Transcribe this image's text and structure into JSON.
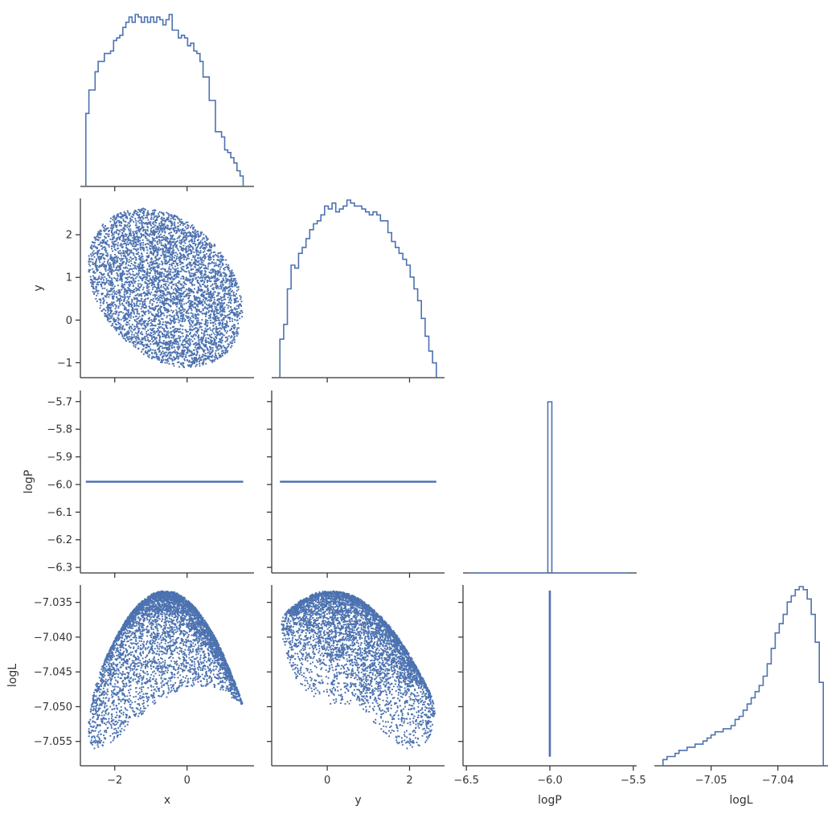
{
  "chart_data": {
    "type": "corner",
    "variables": [
      "x",
      "y",
      "logP",
      "logL"
    ],
    "color": "#4c72b0",
    "axis_color": "#333333",
    "ranges": {
      "x": [
        -2.95,
        1.85
      ],
      "y": [
        -1.35,
        2.85
      ],
      "logP": [
        -6.52,
        -5.48
      ],
      "logL": [
        -7.0585,
        -7.0325
      ]
    },
    "ticks": {
      "x": [
        {
          "v": -2,
          "t": "−2"
        },
        {
          "v": 0,
          "t": "0"
        }
      ],
      "y": [
        {
          "v": -1,
          "t": "−1"
        },
        {
          "v": 0,
          "t": "0"
        },
        {
          "v": 1,
          "t": "1"
        },
        {
          "v": 2,
          "t": "2"
        }
      ],
      "y_bottom": [
        {
          "v": 0,
          "t": "0"
        },
        {
          "v": 2,
          "t": "2"
        }
      ],
      "logP_left": [
        {
          "v": -5.7,
          "t": "−5.7"
        },
        {
          "v": -5.8,
          "t": "−5.8"
        },
        {
          "v": -5.9,
          "t": "−5.9"
        },
        {
          "v": -6.0,
          "t": "−6.0"
        },
        {
          "v": -6.1,
          "t": "−6.1"
        },
        {
          "v": -6.2,
          "t": "−6.2"
        },
        {
          "v": -6.3,
          "t": "−6.3"
        }
      ],
      "logP_bottom": [
        {
          "v": -6.5,
          "t": "−6.5"
        },
        {
          "v": -6.0,
          "t": "−6.0"
        },
        {
          "v": -5.5,
          "t": "−5.5"
        }
      ],
      "logL_left": [
        {
          "v": -7.035,
          "t": "−7.035"
        },
        {
          "v": -7.04,
          "t": "−7.040"
        },
        {
          "v": -7.045,
          "t": "−7.045"
        },
        {
          "v": -7.05,
          "t": "−7.050"
        },
        {
          "v": -7.055,
          "t": "−7.055"
        }
      ],
      "logL_bottom": [
        {
          "v": -7.05,
          "t": "−7.05"
        },
        {
          "v": -7.04,
          "t": "−7.04"
        }
      ]
    },
    "axis_labels": {
      "x": "x",
      "y": "y",
      "logP": "logP",
      "logL": "logL"
    },
    "histograms": {
      "x": {
        "range": [
          -2.8,
          1.55
        ],
        "counts": [
          28,
          37,
          37,
          44,
          48,
          48,
          51,
          51,
          52,
          56,
          57,
          58,
          61,
          63,
          65,
          63,
          66,
          65,
          63,
          65,
          63,
          65,
          63,
          65,
          64,
          62,
          64,
          66,
          60,
          60,
          57,
          58,
          57,
          54,
          55,
          52,
          51,
          48,
          42,
          42,
          33,
          33,
          21,
          21,
          19,
          14,
          13,
          11,
          9,
          6,
          4
        ]
      },
      "y": {
        "range": [
          -1.15,
          2.65
        ],
        "counts": [
          13,
          18,
          30,
          38,
          37,
          42,
          44,
          47,
          50,
          52,
          53,
          55,
          58,
          57,
          59,
          56,
          57,
          58,
          60,
          59,
          58,
          58,
          57,
          56,
          55,
          56,
          55,
          53,
          53,
          49,
          46,
          44,
          42,
          40,
          38,
          34,
          30,
          26,
          20,
          14,
          9,
          5
        ]
      },
      "logL": {
        "range": [
          -7.0572,
          -7.0332
        ],
        "counts": [
          2,
          3,
          3,
          4,
          5,
          5,
          6,
          6,
          7,
          7,
          8,
          9,
          10,
          11,
          11,
          12,
          12,
          13,
          15,
          16,
          18,
          20,
          22,
          24,
          26,
          29,
          33,
          38,
          43,
          46,
          49,
          53,
          55,
          57,
          58,
          57,
          54,
          49,
          40,
          27
        ]
      },
      "logP": {
        "value": -6.0,
        "peak_fraction": 1.0
      }
    },
    "scatter": {
      "x_center": -0.6,
      "x_radius": 2.1,
      "x_bias": 0.75,
      "y_center": 0.75,
      "y_radius": 1.85,
      "logP_value": -5.99,
      "logL_max": -7.0333,
      "logL_min": -7.0572,
      "n_points": 5000
    }
  }
}
